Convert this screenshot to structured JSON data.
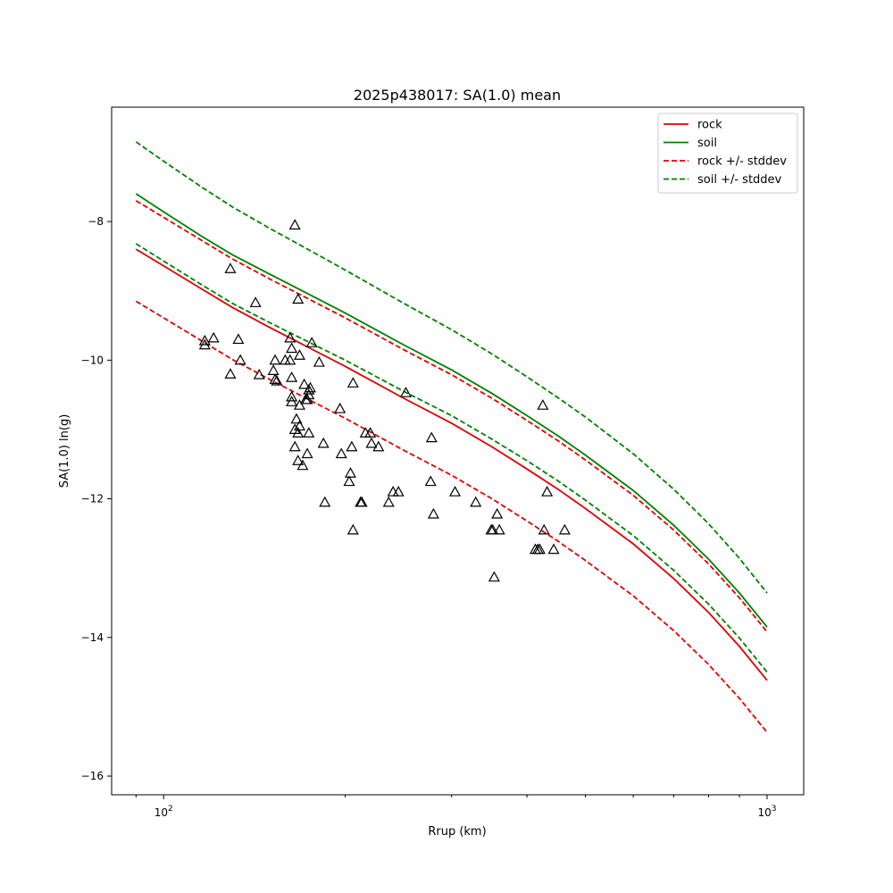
{
  "chart_data": {
    "type": "line",
    "title": "2025p438017: SA(1.0) mean",
    "xlabel": "Rrup (km)",
    "ylabel": "SA(1.0) ln(g)",
    "xscale": "log",
    "xlim": [
      82,
      1150
    ],
    "ylim": [
      -16.27,
      -6.35
    ],
    "x_ticks": [
      {
        "value": 100,
        "base": "10",
        "exp": "2"
      },
      {
        "value": 1000,
        "base": "10",
        "exp": "3"
      }
    ],
    "y_ticks": [
      {
        "value": -8,
        "label": "−8"
      },
      {
        "value": -10,
        "label": "−10"
      },
      {
        "value": -12,
        "label": "−12"
      },
      {
        "value": -14,
        "label": "−14"
      },
      {
        "value": -16,
        "label": "−16"
      }
    ],
    "grid": false,
    "legend_position": "top-right",
    "series": [
      {
        "name": "rock",
        "color": "#e00000",
        "dash": false,
        "x": [
          90,
          100,
          115,
          130,
          150,
          175,
          200,
          250,
          300,
          350,
          400,
          450,
          500,
          600,
          700,
          800,
          900,
          1000
        ],
        "y": [
          -8.4,
          -8.64,
          -8.96,
          -9.24,
          -9.53,
          -9.83,
          -10.09,
          -10.55,
          -10.91,
          -11.25,
          -11.57,
          -11.86,
          -12.14,
          -12.65,
          -13.15,
          -13.64,
          -14.13,
          -14.62
        ]
      },
      {
        "name": "soil",
        "color": "#008000",
        "dash": false,
        "x": [
          90,
          100,
          115,
          130,
          150,
          175,
          200,
          250,
          300,
          350,
          400,
          450,
          500,
          600,
          700,
          800,
          900,
          1000
        ],
        "y": [
          -7.6,
          -7.86,
          -8.2,
          -8.48,
          -8.76,
          -9.06,
          -9.32,
          -9.78,
          -10.14,
          -10.48,
          -10.8,
          -11.09,
          -11.37,
          -11.88,
          -12.38,
          -12.87,
          -13.36,
          -13.85
        ]
      },
      {
        "name": "rock +/- stddev",
        "color": "#e00000",
        "dash": true,
        "x": [
          90,
          100,
          115,
          130,
          150,
          175,
          200,
          250,
          300,
          350,
          400,
          450,
          500,
          600,
          700,
          800,
          900,
          1000
        ],
        "y": [
          -7.7,
          -7.94,
          -8.26,
          -8.54,
          -8.83,
          -9.13,
          -9.39,
          -9.85,
          -10.21,
          -10.55,
          -10.87,
          -11.16,
          -11.44,
          -11.95,
          -12.45,
          -12.94,
          -13.43,
          -13.92
        ]
      },
      {
        "name": "",
        "color": "#e00000",
        "dash": true,
        "x": [
          90,
          100,
          115,
          130,
          150,
          175,
          200,
          250,
          300,
          350,
          400,
          450,
          500,
          600,
          700,
          800,
          900,
          1000
        ],
        "y": [
          -9.15,
          -9.39,
          -9.71,
          -9.99,
          -10.28,
          -10.58,
          -10.84,
          -11.3,
          -11.66,
          -12.0,
          -12.32,
          -12.61,
          -12.89,
          -13.4,
          -13.9,
          -14.39,
          -14.88,
          -15.37
        ]
      },
      {
        "name": "soil +/- stddev",
        "color": "#008000",
        "dash": true,
        "x": [
          90,
          100,
          115,
          130,
          150,
          175,
          200,
          250,
          300,
          350,
          400,
          450,
          500,
          600,
          700,
          800,
          900,
          1000
        ],
        "y": [
          -6.85,
          -7.13,
          -7.49,
          -7.79,
          -8.1,
          -8.42,
          -8.7,
          -9.18,
          -9.56,
          -9.91,
          -10.24,
          -10.54,
          -10.82,
          -11.35,
          -11.86,
          -12.36,
          -12.86,
          -13.36
        ]
      },
      {
        "name": "",
        "color": "#008000",
        "dash": true,
        "x": [
          90,
          100,
          115,
          130,
          150,
          175,
          200,
          250,
          300,
          350,
          400,
          450,
          500,
          600,
          700,
          800,
          900,
          1000
        ],
        "y": [
          -8.32,
          -8.57,
          -8.9,
          -9.18,
          -9.46,
          -9.75,
          -10.0,
          -10.45,
          -10.8,
          -11.14,
          -11.45,
          -11.74,
          -12.02,
          -12.53,
          -13.03,
          -13.52,
          -14.01,
          -14.5
        ]
      }
    ],
    "observations": {
      "marker": "triangle",
      "color": "#000000",
      "points": [
        [
          165,
          -8.05
        ],
        [
          129,
          -8.68
        ],
        [
          142,
          -9.17
        ],
        [
          167,
          -9.12
        ],
        [
          117,
          -9.72
        ],
        [
          121,
          -9.68
        ],
        [
          117,
          -9.78
        ],
        [
          133,
          -9.7
        ],
        [
          162,
          -9.68
        ],
        [
          163,
          -9.83
        ],
        [
          168,
          -9.93
        ],
        [
          176,
          -9.75
        ],
        [
          134,
          -10.0
        ],
        [
          153,
          -10.0
        ],
        [
          159,
          -10.0
        ],
        [
          162,
          -10.0
        ],
        [
          181,
          -10.03
        ],
        [
          129,
          -10.2
        ],
        [
          144,
          -10.21
        ],
        [
          152,
          -10.15
        ],
        [
          153,
          -10.28
        ],
        [
          154,
          -10.3
        ],
        [
          163,
          -10.25
        ],
        [
          171,
          -10.35
        ],
        [
          174,
          -10.43
        ],
        [
          175,
          -10.4
        ],
        [
          174,
          -10.5
        ],
        [
          172,
          -10.57
        ],
        [
          173,
          -10.57
        ],
        [
          163,
          -10.53
        ],
        [
          163,
          -10.6
        ],
        [
          168,
          -10.65
        ],
        [
          206,
          -10.33
        ],
        [
          252,
          -10.47
        ],
        [
          425,
          -10.65
        ],
        [
          196,
          -10.7
        ],
        [
          166,
          -10.85
        ],
        [
          168,
          -10.95
        ],
        [
          165,
          -11.0
        ],
        [
          167,
          -11.05
        ],
        [
          174,
          -11.05
        ],
        [
          216,
          -11.05
        ],
        [
          220,
          -11.05
        ],
        [
          278,
          -11.12
        ],
        [
          165,
          -11.25
        ],
        [
          184,
          -11.2
        ],
        [
          205,
          -11.25
        ],
        [
          221,
          -11.2
        ],
        [
          227,
          -11.25
        ],
        [
          173,
          -11.35
        ],
        [
          197,
          -11.35
        ],
        [
          167,
          -11.45
        ],
        [
          170,
          -11.52
        ],
        [
          204,
          -11.63
        ],
        [
          203,
          -11.75
        ],
        [
          277,
          -11.75
        ],
        [
          240,
          -11.9
        ],
        [
          245,
          -11.9
        ],
        [
          304,
          -11.9
        ],
        [
          432,
          -11.9
        ],
        [
          185,
          -12.05
        ],
        [
          212,
          -12.05
        ],
        [
          213,
          -12.05
        ],
        [
          236,
          -12.05
        ],
        [
          329,
          -12.05
        ],
        [
          280,
          -12.22
        ],
        [
          357,
          -12.22
        ],
        [
          206,
          -12.45
        ],
        [
          349,
          -12.45
        ],
        [
          351,
          -12.45
        ],
        [
          360,
          -12.45
        ],
        [
          427,
          -12.45
        ],
        [
          462,
          -12.45
        ],
        [
          413,
          -12.73
        ],
        [
          417,
          -12.73
        ],
        [
          420,
          -12.73
        ],
        [
          443,
          -12.73
        ],
        [
          353,
          -13.13
        ]
      ]
    }
  }
}
